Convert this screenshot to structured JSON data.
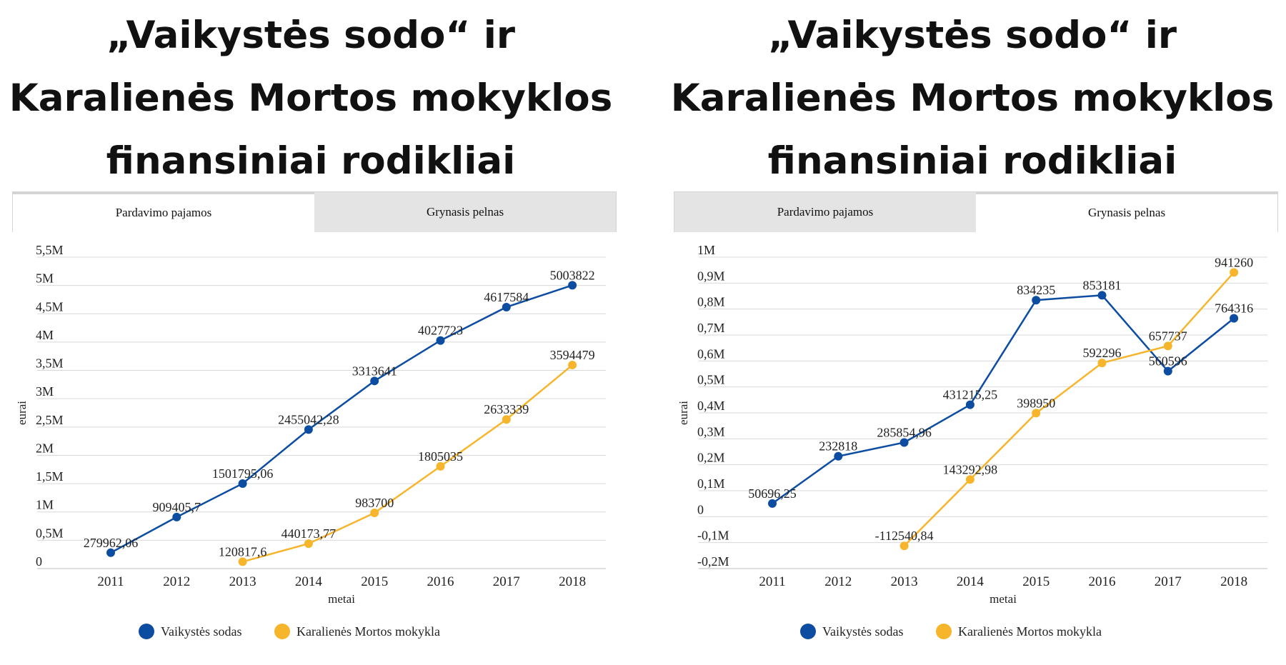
{
  "panels": [
    {
      "title": "„Vaikystės sodo“ ir Karalienės Mortos mokyklos finansiniai rodikliai",
      "tabs": [
        "Pardavimo pajamos",
        "Grynasis pelnas"
      ],
      "active_tab": 0
    },
    {
      "title": "„Vaikystės sodo“ ir Karalienės Mortos mokyklos finansiniai rodikliai",
      "tabs": [
        "Pardavimo pajamos",
        "Grynasis pelnas"
      ],
      "active_tab": 1
    }
  ],
  "colors": {
    "series1": "#0c4da2",
    "series2": "#f7b52c",
    "grid": "#d9d9d9",
    "axis": "#bdbdbd"
  },
  "chart_data": [
    {
      "type": "line",
      "xlabel": "metai",
      "ylabel": "eurai",
      "x": [
        "2011",
        "2012",
        "2013",
        "2014",
        "2015",
        "2016",
        "2017",
        "2018"
      ],
      "ylim": [
        0,
        5500000
      ],
      "yticks": [
        0,
        500000,
        1000000,
        1500000,
        2000000,
        2500000,
        3000000,
        3500000,
        4000000,
        4500000,
        5000000,
        5500000
      ],
      "ytick_labels": [
        "0",
        "0,5M",
        "1M",
        "1,5M",
        "2M",
        "2,5M",
        "3M",
        "3,5M",
        "4M",
        "4,5M",
        "5M",
        "5,5M"
      ],
      "grid": true,
      "legend": "bottom",
      "series": [
        {
          "name": "Vaikystės sodas",
          "values": [
            279962.06,
            909405.7,
            1501795.06,
            2455042.28,
            3313641,
            4027723,
            4617584,
            5003822
          ],
          "labels": [
            "279962,06",
            "909405,7",
            "1501795,06",
            "2455042,28",
            "3313641",
            "4027723",
            "4617584",
            "5003822"
          ]
        },
        {
          "name": "Karalienės Mortos mokykla",
          "values": [
            null,
            null,
            120817.6,
            440173.77,
            983700,
            1805035,
            2633339,
            3594479
          ],
          "labels": [
            null,
            null,
            "120817,6",
            "440173,77",
            "983700",
            "1805035",
            "2633339",
            "3594479"
          ]
        }
      ]
    },
    {
      "type": "line",
      "xlabel": "metai",
      "ylabel": "eurai",
      "x": [
        "2011",
        "2012",
        "2013",
        "2014",
        "2015",
        "2016",
        "2017",
        "2018"
      ],
      "ylim": [
        -200000,
        1000000
      ],
      "yticks": [
        -200000,
        -100000,
        0,
        100000,
        200000,
        300000,
        400000,
        500000,
        600000,
        700000,
        800000,
        900000,
        1000000
      ],
      "ytick_labels": [
        "-0,2M",
        "-0,1M",
        "0",
        "0,1M",
        "0,2M",
        "0,3M",
        "0,4M",
        "0,5M",
        "0,6M",
        "0,7M",
        "0,8M",
        "0,9M",
        "1M"
      ],
      "grid": true,
      "legend": "bottom",
      "series": [
        {
          "name": "Vaikystės sodas",
          "values": [
            50696.25,
            232818,
            285854.96,
            431215.25,
            834235,
            853181,
            560596,
            764316
          ],
          "labels": [
            "50696,25",
            "232818",
            "285854,96",
            "431215,25",
            "834235",
            "853181",
            "560596",
            "764316"
          ]
        },
        {
          "name": "Karalienės Mortos mokykla",
          "values": [
            null,
            null,
            -112540.84,
            143292.98,
            398950,
            592296,
            657737,
            941260
          ],
          "labels": [
            null,
            null,
            "-112540,84",
            "143292,98",
            "398950",
            "592296",
            "657737",
            "941260"
          ]
        }
      ]
    }
  ]
}
